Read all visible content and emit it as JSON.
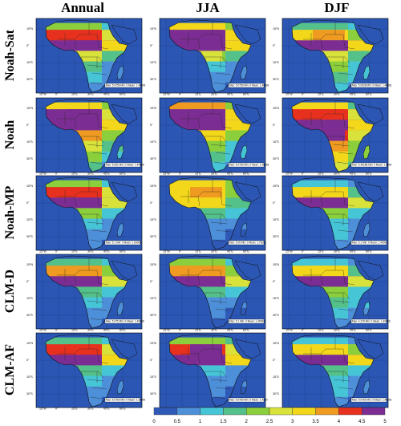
{
  "columns": [
    {
      "id": "annual",
      "title": "Annual"
    },
    {
      "id": "jja",
      "title": "JJA"
    },
    {
      "id": "djf",
      "title": "DJF"
    }
  ],
  "rows": [
    {
      "id": "noah-sat",
      "label": "Noah-Sat"
    },
    {
      "id": "noah",
      "label": "Noah"
    },
    {
      "id": "noah-mp",
      "label": "Noah-MP"
    },
    {
      "id": "clm-d",
      "label": "CLM-D"
    },
    {
      "id": "clm-af",
      "label": "CLM-AF"
    }
  ],
  "panel_axes": {
    "lon_ticks": [
      "15°W",
      "0°",
      "15°E",
      "30°E",
      "45°E",
      "60°E"
    ],
    "lat_ticks": [
      "15°N",
      "0°",
      "15°S",
      "30°S"
    ]
  },
  "colorbar": {
    "ticks": [
      "0",
      "0.5",
      "1",
      "1.5",
      "2",
      "2.5",
      "3",
      "3.5",
      "4",
      "4.5",
      "5"
    ],
    "colors": [
      "#2f59b6",
      "#4d8fd8",
      "#46c5d6",
      "#54c08a",
      "#8bcf3d",
      "#d8e23a",
      "#f2d71b",
      "#ef9a20",
      "#e8301e",
      "#7c2d93"
    ]
  },
  "panel_stats": {
    "annual": [
      "Max: 5.0759 Min: 0 Mean: 1.40093",
      "Max: 5.051 Min: 0 Mean: 1.44006",
      "Max: 5.1 Min: 0 Mean: 1.60008",
      "Max: 5.075 Min: 0 Mean: 1.40008",
      "Max: 5.0760 Min: 0 Mean: 1.3800005"
    ],
    "jja": [
      "Max: 5.0759 Min: 0 Mean: 1.40093",
      "Max: 5.0760 Min: 0 Mean: 1.40093",
      "Max: 5.05 Min: 0 Mean: 1.76201",
      "Max: 5.1 Min: 0 Mean: 1.40093",
      "Max: 5.0760 Min: 0 Mean: 1.4100"
    ],
    "djf": [
      "Max: 5.0928 Min: 0 Mean: 1.40093",
      "Max: 5.46188 Min: 0 Mean: 1.40093",
      "Max: 5.1 Min: 0 Mean: 1.40093",
      "Max: 4.276 Min: 0 Mean: 1.40093",
      "Max: 5.0760 Min: 0 Mean: 1.40093"
    ]
  },
  "field_profiles": {
    "noah-sat": {
      "annual": [
        2.0,
        4.2,
        5.0,
        2.6,
        1.5,
        1.2,
        0.8
      ],
      "jja": [
        3.2,
        4.7,
        5.0,
        2.4,
        1.2,
        0.8,
        0.5
      ],
      "djf": [
        1.6,
        3.4,
        5.0,
        2.8,
        2.0,
        1.6,
        1.0
      ]
    },
    "noah": {
      "annual": [
        3.4,
        4.6,
        5.0,
        3.8,
        2.8,
        2.2,
        1.5
      ],
      "jja": [
        3.8,
        4.8,
        5.0,
        3.2,
        2.0,
        1.6,
        1.2
      ],
      "djf": [
        3.0,
        4.2,
        5.0,
        4.4,
        3.8,
        3.2,
        2.5
      ]
    },
    "noah-mp": {
      "annual": [
        2.2,
        4.0,
        4.6,
        2.0,
        1.2,
        0.9,
        0.5
      ],
      "jja": [
        3.2,
        3.4,
        3.0,
        1.6,
        0.9,
        0.6,
        0.4
      ],
      "djf": [
        1.4,
        3.0,
        4.6,
        2.0,
        1.4,
        1.2,
        0.8
      ]
    },
    "clm-d": {
      "annual": [
        1.6,
        3.6,
        4.6,
        1.8,
        1.2,
        0.9,
        0.6
      ],
      "jja": [
        2.0,
        3.8,
        4.6,
        1.6,
        0.9,
        0.7,
        0.4
      ],
      "djf": [
        1.2,
        3.0,
        4.6,
        2.0,
        1.6,
        1.3,
        0.8
      ]
    },
    "clm-af": {
      "annual": [
        1.8,
        4.0,
        5.0,
        1.6,
        1.0,
        0.8,
        0.5
      ],
      "jja": [
        2.4,
        4.4,
        5.0,
        1.4,
        0.8,
        0.6,
        0.4
      ],
      "djf": [
        1.4,
        3.2,
        5.0,
        1.8,
        1.2,
        1.0,
        0.7
      ]
    }
  }
}
